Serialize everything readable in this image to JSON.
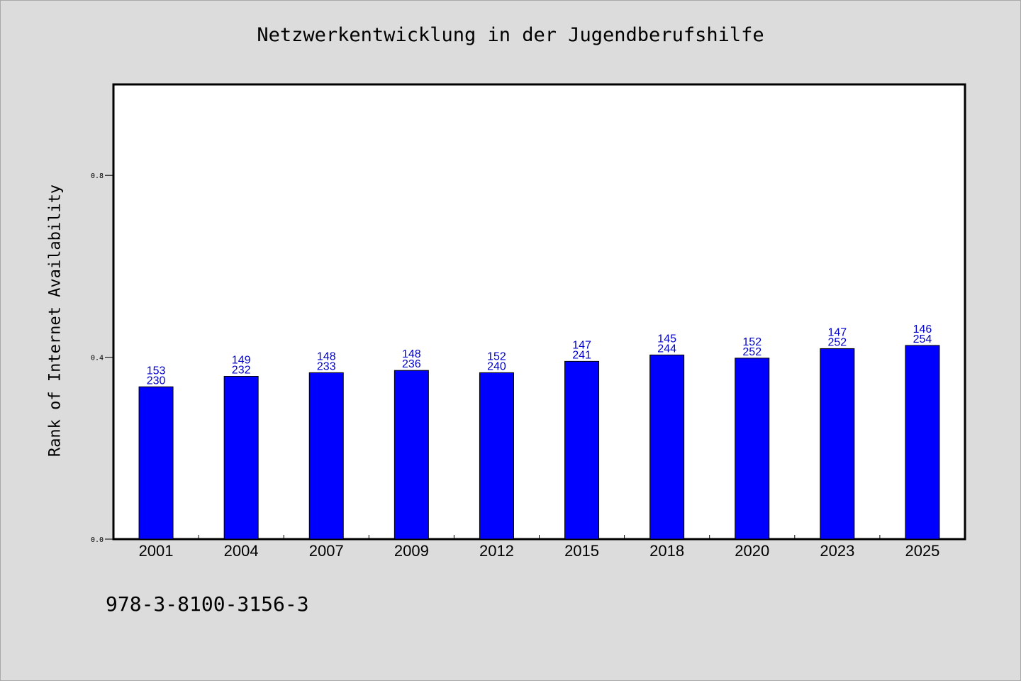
{
  "page": {
    "title": "Netzwerkentwicklung in der Jugendberufshilfe",
    "ylabel": "Rank of Internet Availability",
    "footer_text": "978-3-8100-3156-3"
  },
  "chart_data": {
    "type": "bar",
    "title": "Netzwerkentwicklung in der Jugendberufshilfe",
    "xlabel": "",
    "ylabel": "Rank of Internet Availability",
    "categories": [
      "2001",
      "2004",
      "2007",
      "2009",
      "2012",
      "2015",
      "2018",
      "2020",
      "2023",
      "2025"
    ],
    "values": [
      0.335,
      0.358,
      0.366,
      0.371,
      0.366,
      0.391,
      0.405,
      0.398,
      0.419,
      0.426
    ],
    "label_top": [
      "153",
      "149",
      "148",
      "148",
      "152",
      "147",
      "145",
      "152",
      "147",
      "146"
    ],
    "label_bottom": [
      "230",
      "232",
      "233",
      "236",
      "240",
      "241",
      "244",
      "252",
      "252",
      "254"
    ],
    "yticks": [
      "0.0",
      "0.4",
      "0.8"
    ],
    "ylim": [
      0,
      1.0
    ],
    "grid": false,
    "colors": {
      "bar": "#0000ff",
      "bar_edge": "#000000",
      "label": "#0000cc",
      "background": "#dcdcdc",
      "plot_background": "#ffffff"
    }
  }
}
